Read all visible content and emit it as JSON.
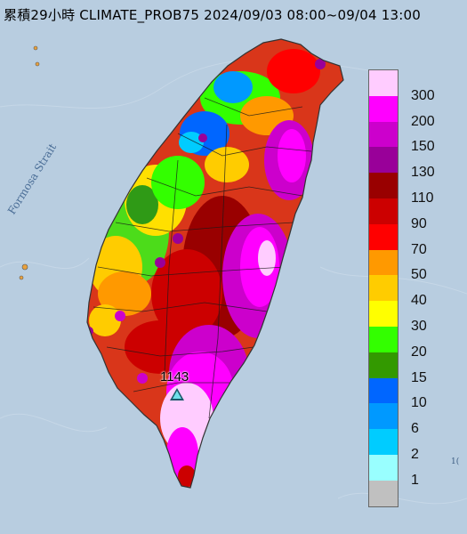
{
  "header": {
    "title": "累積29小時 CLIMATE_PROB75 2024/09/03 08:00~09/04 13:00"
  },
  "map": {
    "strait_label": "Formosa Strait",
    "edge_label": "1("
  },
  "station": {
    "max_value": "1143"
  },
  "legend": {
    "items": [
      {
        "label": "300",
        "color": "#ffccff"
      },
      {
        "label": "200",
        "color": "#ff00ff"
      },
      {
        "label": "150",
        "color": "#cc00cc"
      },
      {
        "label": "130",
        "color": "#990099"
      },
      {
        "label": "110",
        "color": "#990000"
      },
      {
        "label": "90",
        "color": "#cc0000"
      },
      {
        "label": "70",
        "color": "#ff0000"
      },
      {
        "label": "50",
        "color": "#ff9900"
      },
      {
        "label": "40",
        "color": "#ffcc00"
      },
      {
        "label": "30",
        "color": "#ffff00"
      },
      {
        "label": "20",
        "color": "#33ff00"
      },
      {
        "label": "15",
        "color": "#339900"
      },
      {
        "label": "10",
        "color": "#0066ff"
      },
      {
        "label": "6",
        "color": "#0099ff"
      },
      {
        "label": "2",
        "color": "#00ccff"
      },
      {
        "label": "1",
        "color": "#99ffff"
      },
      {
        "label": "",
        "color": "#c0c0c0"
      }
    ]
  },
  "colors": {
    "sea": "#b8cde0",
    "land_base": "#e64b1c",
    "county_lines": "#1a1a1a"
  }
}
